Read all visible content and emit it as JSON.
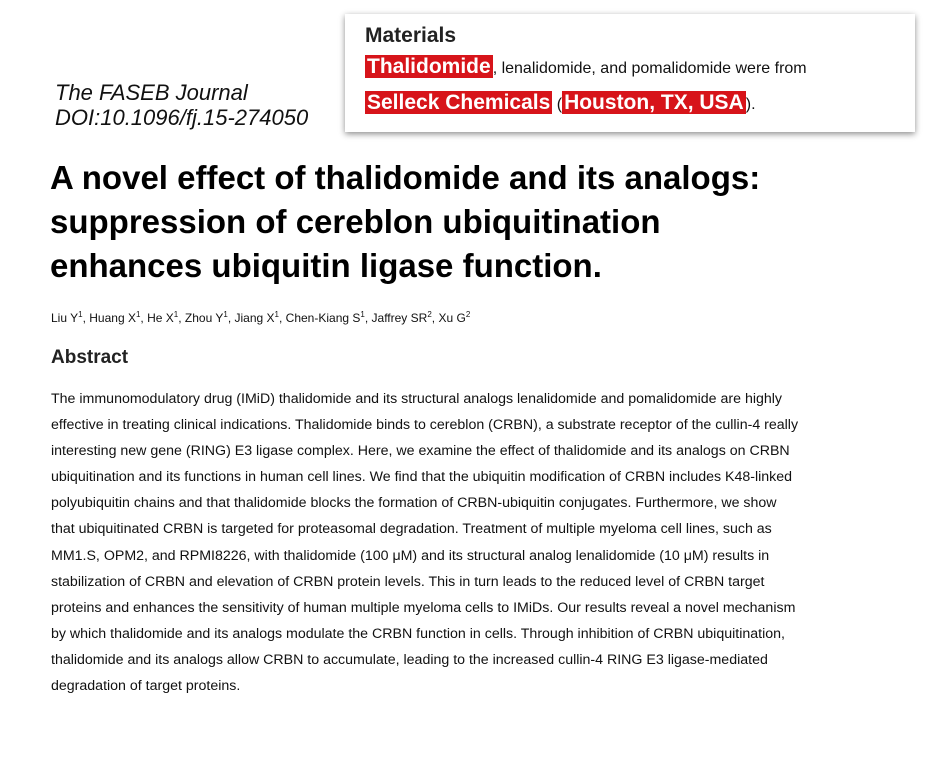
{
  "journal": {
    "name": "The FASEB Journal",
    "doi": "DOI:10.1096/fj.15-274050"
  },
  "title": [
    "A novel effect of thalidomide and its analogs:",
    "suppression of cereblon ubiquitination",
    "enhances ubiquitin ligase function."
  ],
  "authors": [
    {
      "name": "Liu Y",
      "aff": "1"
    },
    {
      "name": "Huang X",
      "aff": "1"
    },
    {
      "name": "He X",
      "aff": "1"
    },
    {
      "name": "Zhou Y",
      "aff": "1"
    },
    {
      "name": "Jiang X",
      "aff": "1"
    },
    {
      "name": "Chen-Kiang S",
      "aff": "1"
    },
    {
      "name": "Jaffrey SR",
      "aff": "2"
    },
    {
      "name": "Xu G",
      "aff": "2"
    }
  ],
  "abstract": {
    "heading": "Abstract",
    "lines": [
      "The immunomodulatory drug (IMiD) thalidomide and its structural analogs lenalidomide and pomalidomide are highly",
      "effective in treating clinical indications. Thalidomide binds to cereblon (CRBN), a substrate receptor of the cullin-4 really",
      "interesting new gene (RING) E3 ligase complex. Here, we examine the effect of thalidomide and its analogs on CRBN",
      "ubiquitination and its functions in human cell lines. We find that the ubiquitin modification of CRBN includes K48-linked",
      "polyubiquitin chains and that thalidomide blocks the formation of CRBN-ubiquitin conjugates. Furthermore, we show",
      "that ubiquitinated CRBN is targeted for proteasomal degradation. Treatment of multiple myeloma cell lines, such as",
      "MM1.S, OPM2, and RPMI8226, with thalidomide (100 μM) and its structural analog lenalidomide (10 μM) results in",
      "stabilization of CRBN and elevation of CRBN protein levels. This in turn leads to the reduced level of CRBN target",
      "proteins and enhances the sensitivity of human multiple myeloma cells to IMiDs. Our results reveal a novel mechanism",
      "by which thalidomide and its analogs modulate the CRBN function in cells. Through inhibition of CRBN ubiquitination,",
      "thalidomide and its analogs allow CRBN to accumulate, leading to the increased cullin-4 RING E3 ligase-mediated",
      "degradation of target proteins."
    ]
  },
  "materials": {
    "heading": "Materials",
    "highlight1": "Thalidomide",
    "text1": ", lenalidomide, and pomalidomide were from ",
    "highlight2": "Selleck Chemicals",
    "open_paren": "(",
    "highlight3": "Houston, TX, USA",
    "close": ")."
  },
  "colors": {
    "highlight": "#d7141a"
  }
}
